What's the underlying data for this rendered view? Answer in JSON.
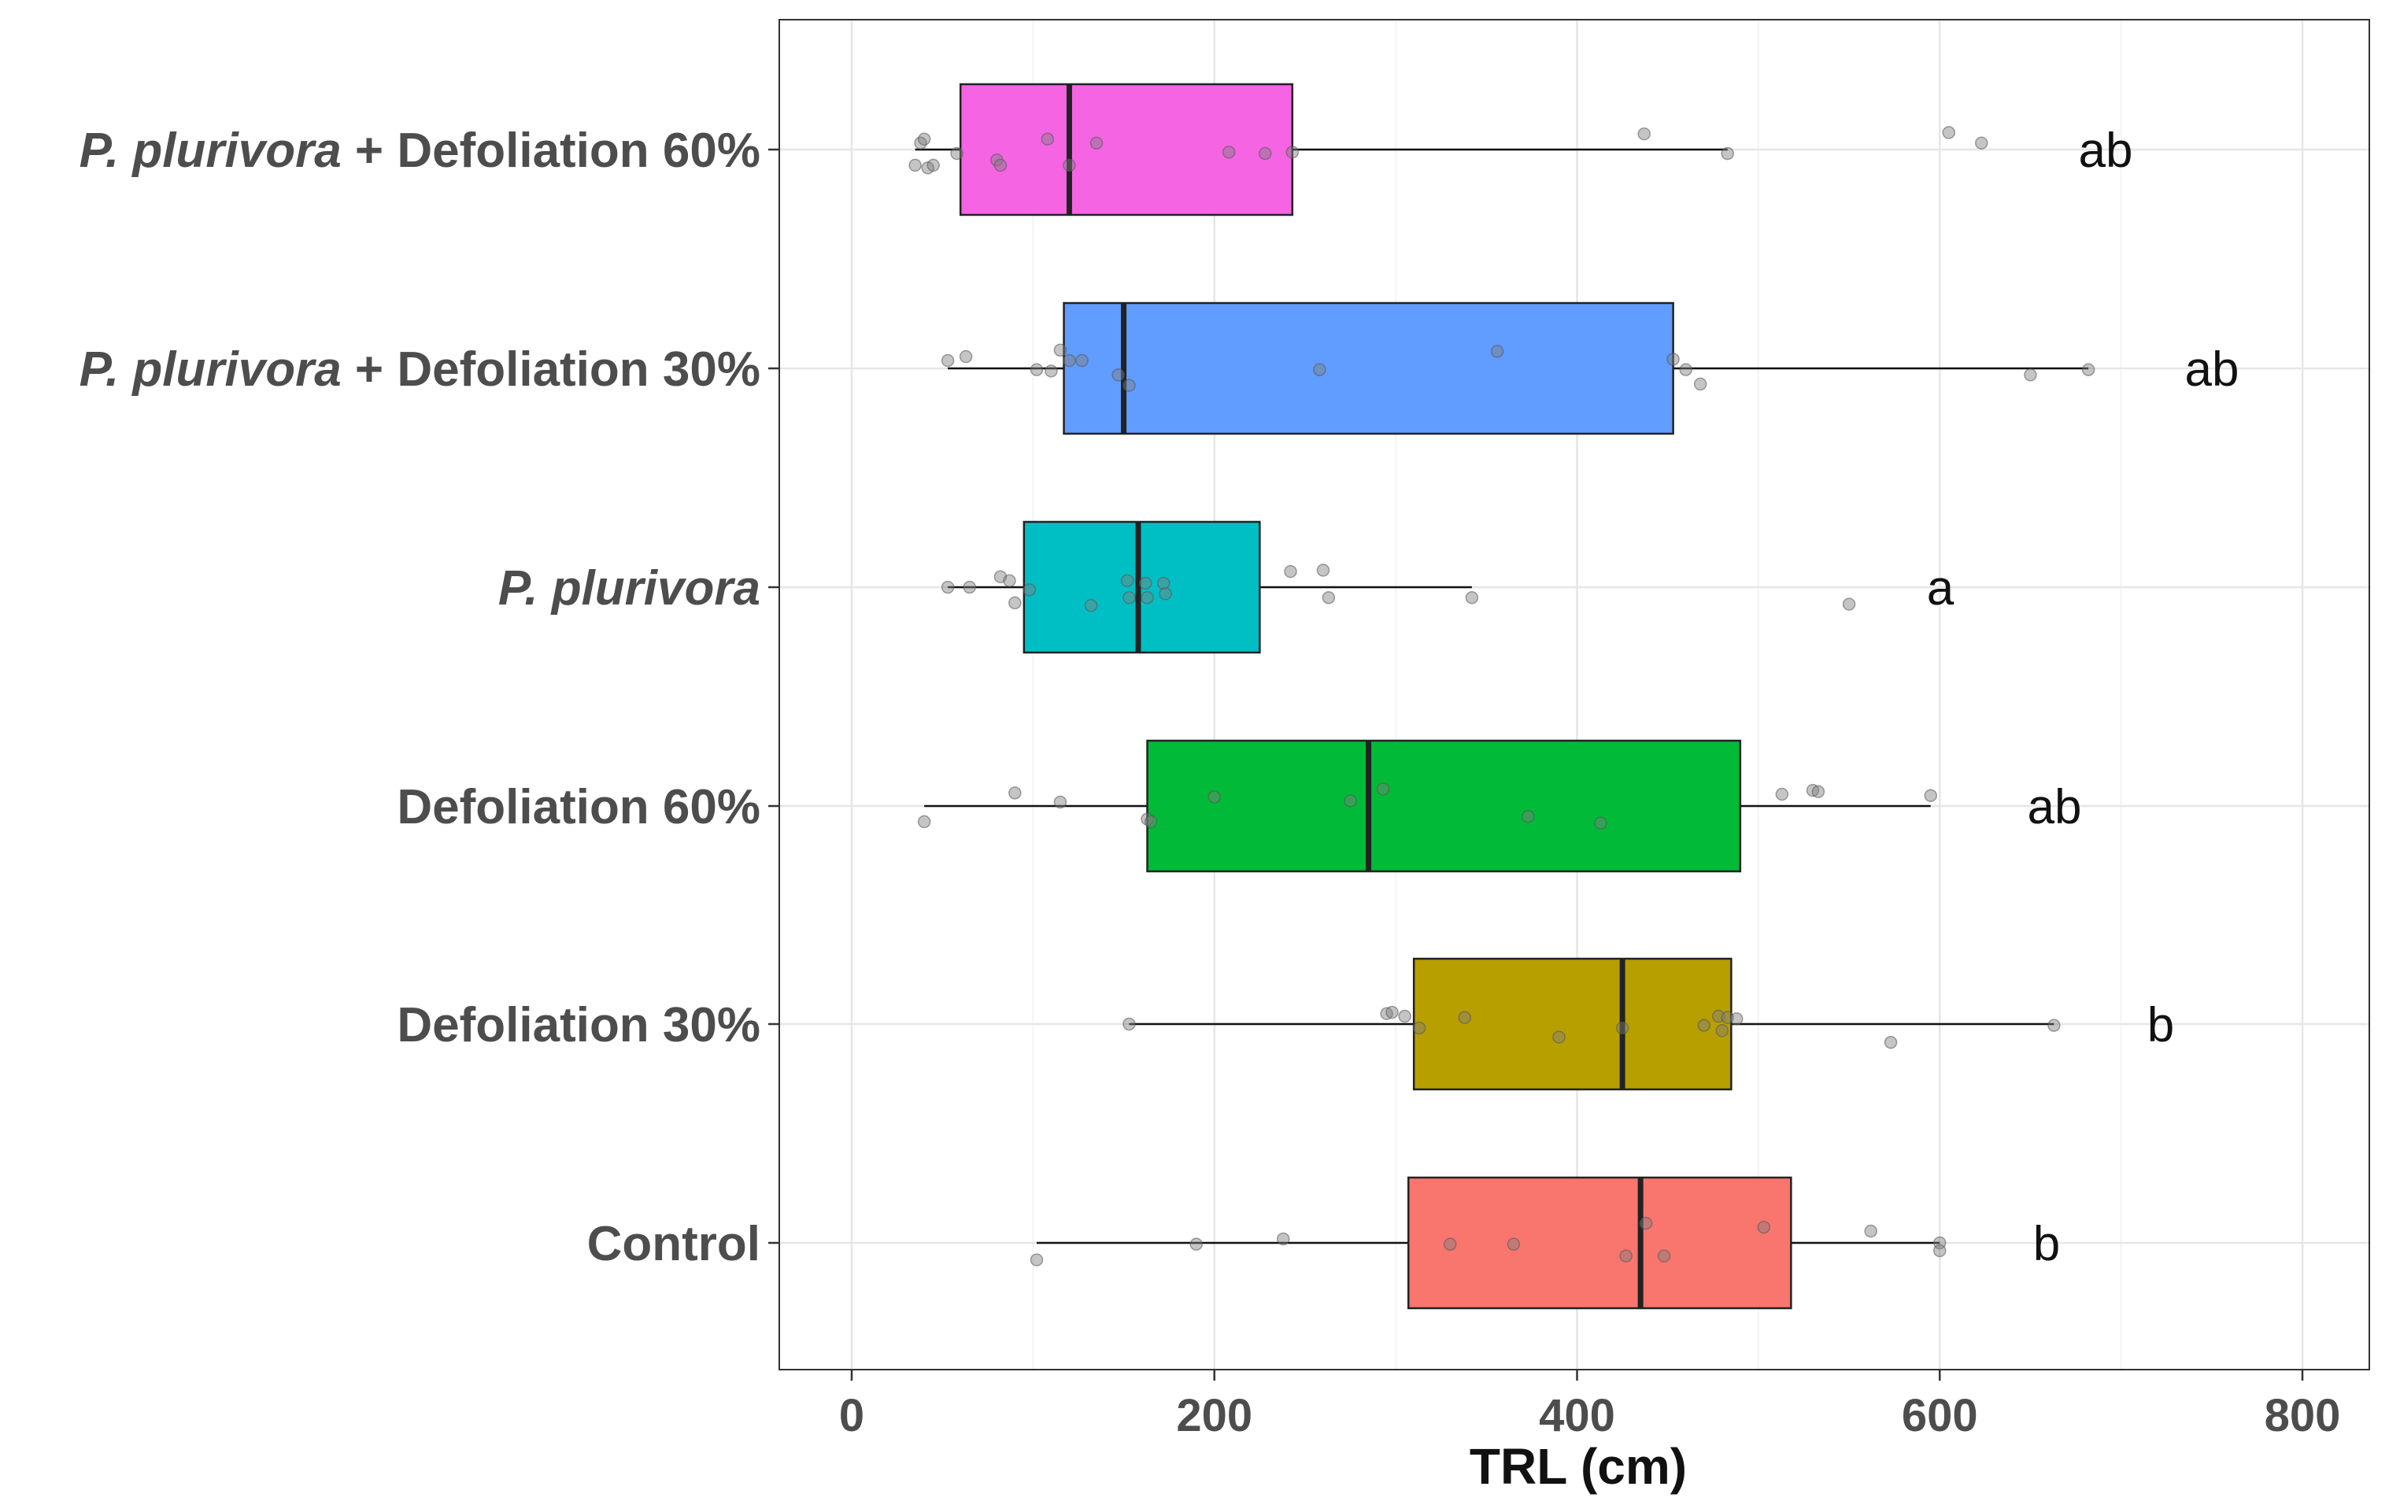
{
  "chart_data": {
    "type": "box",
    "xlabel": "TRL (cm)",
    "ylabel": "",
    "xlim": [
      -40,
      840
    ],
    "xticks": [
      0,
      200,
      400,
      600,
      800
    ],
    "grid": true,
    "legend": "none",
    "categories": [
      {
        "label_parts": [
          {
            "text": "P. plurivora",
            "italic": true
          },
          {
            "text": " + Defoliation 60%",
            "italic": false
          }
        ],
        "color": "#f564e3",
        "whisker_low": 35,
        "q1": 60,
        "median": 120,
        "q3": 243,
        "whisker_high": 483,
        "significance": "ab",
        "points": [
          35,
          38,
          40,
          42,
          45,
          58,
          80,
          82,
          108,
          120,
          135,
          208,
          228,
          243,
          437,
          483,
          605,
          623
        ],
        "jitter": [
          0.12,
          -0.05,
          -0.08,
          0.14,
          0.12,
          0.03,
          0.08,
          0.12,
          -0.08,
          0.12,
          -0.05,
          0.02,
          0.03,
          0.02,
          -0.12,
          0.03,
          -0.13,
          -0.05
        ]
      },
      {
        "label_parts": [
          {
            "text": "P. plurivora",
            "italic": true
          },
          {
            "text": " + Defoliation 30%",
            "italic": false
          }
        ],
        "color": "#619cff",
        "whisker_low": 53,
        "q1": 117,
        "median": 150,
        "q3": 453,
        "whisker_high": 682,
        "significance": "ab",
        "points": [
          53,
          63,
          102,
          110,
          115,
          120,
          127,
          147,
          153,
          258,
          356,
          453,
          460,
          468,
          650,
          682
        ],
        "jitter": [
          -0.06,
          -0.09,
          0.01,
          0.02,
          -0.14,
          -0.06,
          -0.06,
          0.05,
          0.13,
          0.01,
          -0.13,
          -0.07,
          0.01,
          0.12,
          0.05,
          0.01
        ]
      },
      {
        "label_parts": [
          {
            "text": "P. plurivora",
            "italic": true
          }
        ],
        "color": "#00bfc4",
        "whisker_low": 53,
        "q1": 95,
        "median": 158,
        "q3": 225,
        "whisker_high": 342,
        "significance": "a",
        "points": [
          53,
          65,
          82,
          87,
          90,
          98,
          132,
          152,
          153,
          162,
          163,
          172,
          173,
          242,
          260,
          263,
          342,
          550
        ],
        "jitter": [
          0.0,
          0.0,
          -0.08,
          -0.05,
          0.12,
          0.02,
          0.14,
          -0.05,
          0.08,
          -0.03,
          0.08,
          -0.03,
          0.05,
          -0.12,
          -0.13,
          0.08,
          0.08,
          0.13
        ]
      },
      {
        "label_parts": [
          {
            "text": "Defoliation 60%",
            "italic": false
          }
        ],
        "color": "#00ba38",
        "whisker_low": 40,
        "q1": 163,
        "median": 285,
        "q3": 490,
        "whisker_high": 595,
        "significance": "ab",
        "points": [
          40,
          90,
          115,
          163,
          165,
          200,
          275,
          293,
          373,
          413,
          513,
          530,
          533,
          595
        ],
        "jitter": [
          0.12,
          -0.1,
          -0.03,
          0.1,
          0.12,
          -0.07,
          -0.04,
          -0.13,
          0.08,
          0.13,
          -0.09,
          -0.12,
          -0.11,
          -0.08
        ]
      },
      {
        "label_parts": [
          {
            "text": "Defoliation 30%",
            "italic": false
          }
        ],
        "color": "#b79f00",
        "whisker_low": 153,
        "q1": 310,
        "median": 425,
        "q3": 485,
        "whisker_high": 663,
        "significance": "b",
        "points": [
          153,
          295,
          298,
          305,
          313,
          338,
          390,
          425,
          470,
          478,
          480,
          483,
          488,
          573,
          663
        ],
        "jitter": [
          0.0,
          -0.08,
          -0.09,
          -0.06,
          0.03,
          -0.05,
          0.1,
          0.03,
          0.01,
          -0.06,
          0.05,
          -0.05,
          -0.04,
          0.14,
          0.01
        ]
      },
      {
        "label_parts": [
          {
            "text": "Control",
            "italic": false
          }
        ],
        "color": "#f8766d",
        "whisker_low": 102,
        "q1": 307,
        "median": 435,
        "q3": 518,
        "whisker_high": 600,
        "significance": "b",
        "points": [
          102,
          190,
          238,
          330,
          365,
          427,
          438,
          448,
          503,
          562,
          600,
          600
        ],
        "jitter": [
          0.13,
          0.01,
          -0.03,
          0.01,
          0.01,
          0.1,
          -0.15,
          0.1,
          -0.12,
          -0.09,
          0.0,
          0.06
        ]
      }
    ]
  }
}
